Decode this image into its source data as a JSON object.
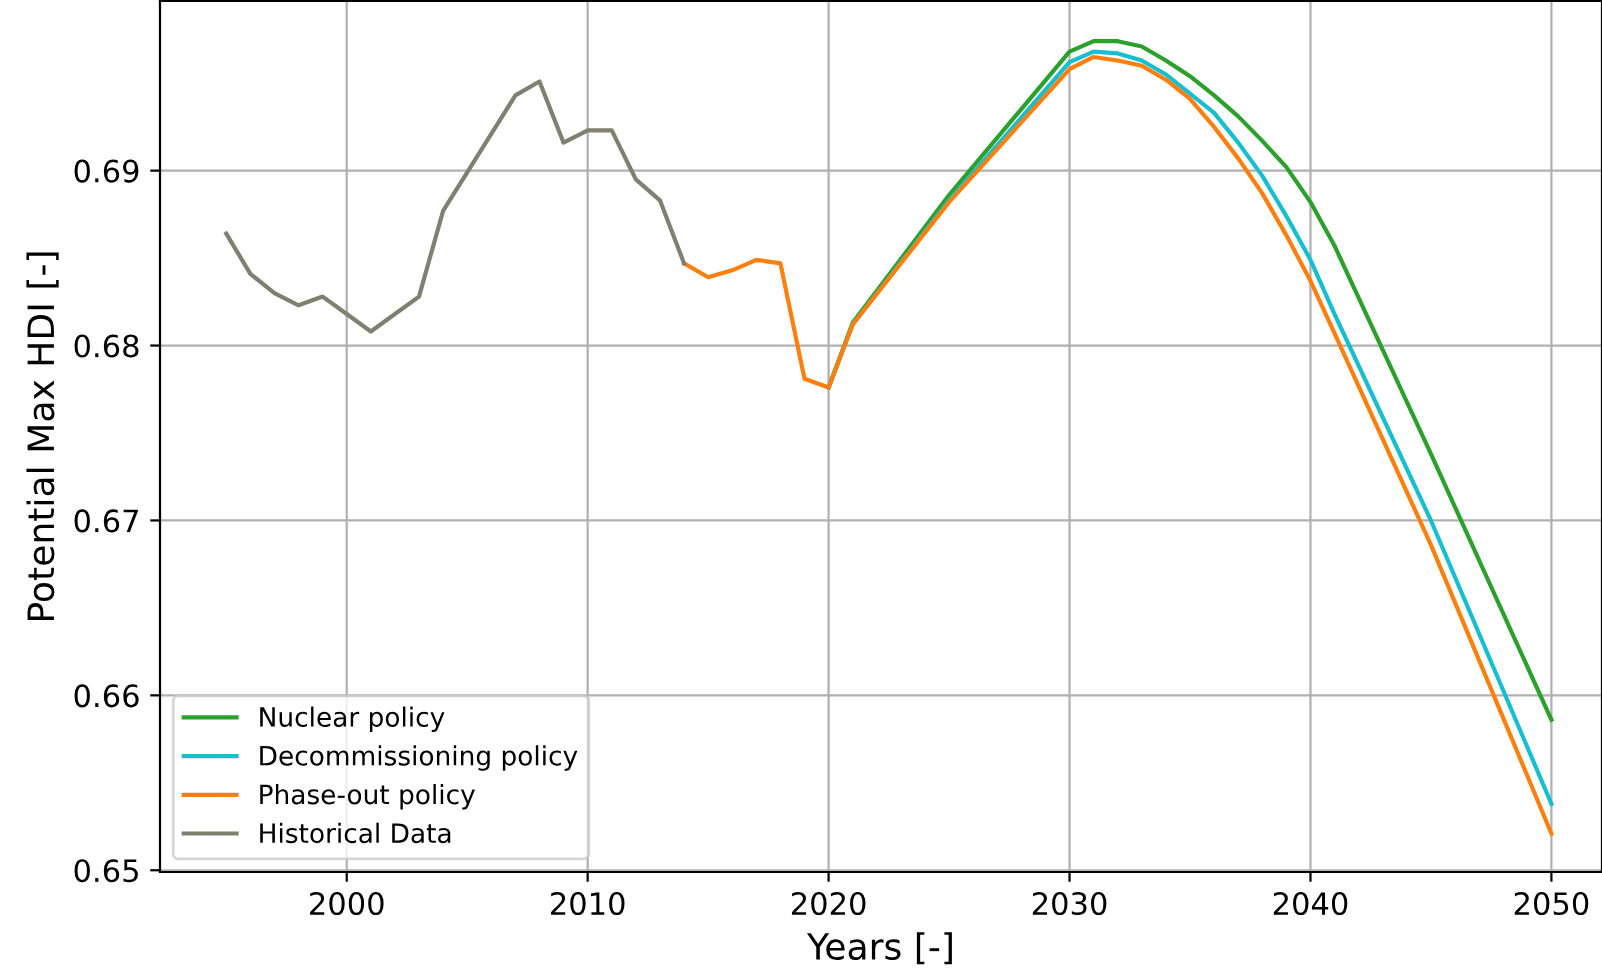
{
  "chart_data": {
    "type": "line",
    "xlabel": "Years [-]",
    "ylabel": "Potential Max HDI [-]",
    "xlim": [
      1992.25,
      2052.1
    ],
    "ylim": [
      0.6499,
      0.6997
    ],
    "xticks": [
      2000,
      2010,
      2020,
      2030,
      2040,
      2050
    ],
    "yticks": [
      0.65,
      0.66,
      0.67,
      0.68,
      0.69
    ],
    "grid": true,
    "legend": "bottom left",
    "marker": "none",
    "line_style": "solid",
    "series": [
      {
        "name": "Nuclear policy",
        "color": "#2ca02c",
        "x": [
          2020,
          2021,
          2025,
          2030,
          2031,
          2032,
          2033,
          2034,
          2035,
          2036,
          2037,
          2038,
          2039,
          2040,
          2041,
          2045,
          2050
        ],
        "values": [
          0.6776,
          0.6813,
          0.6886,
          0.6968,
          0.6974,
          0.6974,
          0.6971,
          0.6963,
          0.6954,
          0.6943,
          0.6931,
          0.6917,
          0.6902,
          0.6882,
          0.6857,
          0.6738,
          0.6586
        ]
      },
      {
        "name": "Decommissioning policy",
        "color": "#17becf",
        "x": [
          2020,
          2021,
          2025,
          2030,
          2031,
          2032,
          2033,
          2034,
          2035,
          2036,
          2037,
          2038,
          2039,
          2040,
          2041,
          2045,
          2050
        ],
        "values": [
          0.6776,
          0.6812,
          0.6883,
          0.6962,
          0.6968,
          0.6967,
          0.6963,
          0.6955,
          0.6944,
          0.6933,
          0.6916,
          0.6897,
          0.6874,
          0.6849,
          0.6818,
          0.67,
          0.6538
        ]
      },
      {
        "name": "Phase-out policy",
        "color": "#ff7f0e",
        "x": [
          2014,
          2015,
          2016,
          2017,
          2018,
          2019,
          2020,
          2021,
          2025,
          2030,
          2031,
          2032,
          2033,
          2034,
          2035,
          2036,
          2037,
          2038,
          2039,
          2040,
          2041,
          2045,
          2050
        ],
        "values": [
          0.6847,
          0.6839,
          0.6843,
          0.6849,
          0.6847,
          0.6781,
          0.6776,
          0.6812,
          0.6882,
          0.6958,
          0.6965,
          0.6963,
          0.696,
          0.6952,
          0.6941,
          0.6925,
          0.6907,
          0.6887,
          0.6863,
          0.6837,
          0.6807,
          0.6686,
          0.6521
        ]
      },
      {
        "name": "Historical Data",
        "color": "#808070",
        "x": [
          1995,
          1996,
          1997,
          1998,
          1999,
          2000,
          2001,
          2002,
          2003,
          2004,
          2005,
          2006,
          2007,
          2008,
          2009,
          2010,
          2011,
          2012,
          2013,
          2014
        ],
        "values": [
          0.6864,
          0.6841,
          0.683,
          0.6823,
          0.6828,
          0.6818,
          0.6808,
          0.6818,
          0.6828,
          0.6877,
          0.6899,
          0.6921,
          0.6943,
          0.6951,
          0.6916,
          0.6923,
          0.6923,
          0.6895,
          0.6883,
          0.6847
        ]
      }
    ]
  }
}
